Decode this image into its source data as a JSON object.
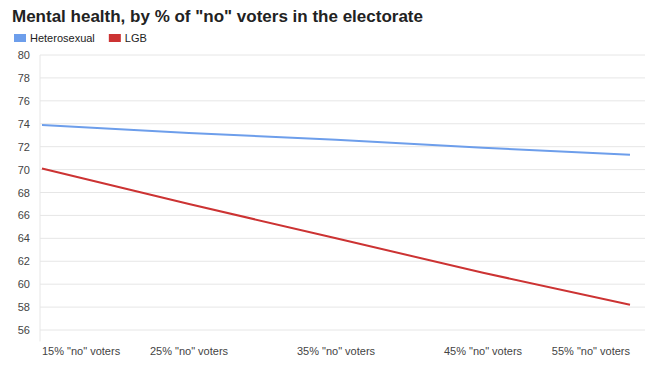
{
  "chart_data": {
    "type": "line",
    "title": "Mental health, by % of \"no\" voters in the electorate",
    "categories": [
      "15% \"no\" voters",
      "25% \"no\" voters",
      "35% \"no\" voters",
      "45% \"no\" voters",
      "55% \"no\" voters"
    ],
    "series": [
      {
        "name": "Heterosexual",
        "color": "#6d9eeb",
        "values": [
          73.9,
          73.2,
          72.6,
          71.9,
          71.3
        ]
      },
      {
        "name": "LGB",
        "color": "#cc3333",
        "values": [
          70.1,
          67.0,
          64.0,
          61.0,
          58.2
        ]
      }
    ],
    "ylim": [
      55,
      80
    ],
    "yticks": [
      56,
      58,
      60,
      62,
      64,
      66,
      68,
      70,
      72,
      74,
      76,
      78,
      80
    ],
    "grid": true,
    "legend": "top-left"
  }
}
